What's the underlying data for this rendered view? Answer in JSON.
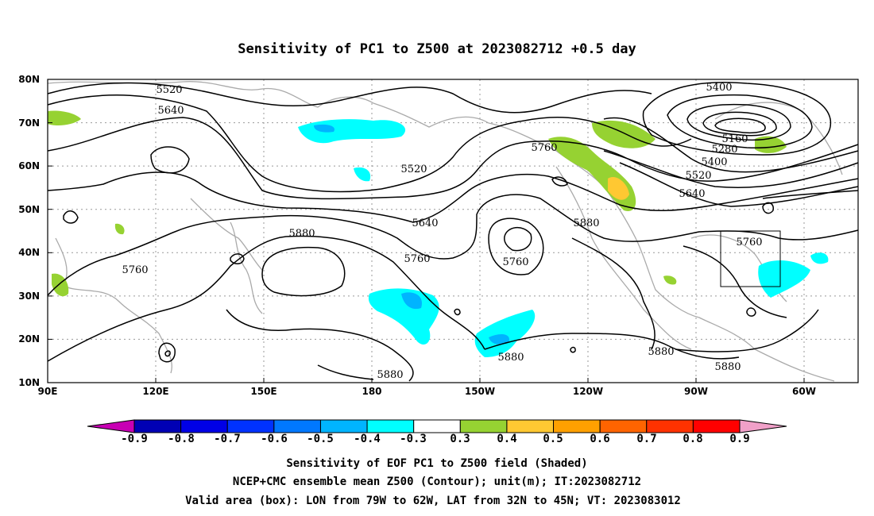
{
  "title": "Sensitivity of PC1 to Z500 at 2023082712 +0.5 day",
  "lat_labels": [
    "80N",
    "70N",
    "60N",
    "50N",
    "40N",
    "30N",
    "20N",
    "10N"
  ],
  "lon_labels": [
    "90E",
    "120E",
    "150E",
    "180",
    "150W",
    "120W",
    "90W",
    "60W"
  ],
  "contour_labels": [
    {
      "v": "5520"
    },
    {
      "v": "5640"
    },
    {
      "v": "5520"
    },
    {
      "v": "5760"
    },
    {
      "v": "5640"
    },
    {
      "v": "5760"
    },
    {
      "v": "5880"
    },
    {
      "v": "5760"
    },
    {
      "v": "5880"
    },
    {
      "v": "5880"
    },
    {
      "v": "5880"
    },
    {
      "v": "5760"
    },
    {
      "v": "5400"
    },
    {
      "v": "5160"
    },
    {
      "v": "5280"
    },
    {
      "v": "5400"
    },
    {
      "v": "5520"
    },
    {
      "v": "5640"
    },
    {
      "v": "5760"
    },
    {
      "v": "5880"
    },
    {
      "v": "5880"
    }
  ],
  "colorbar": {
    "labels": [
      "-0.9",
      "-0.8",
      "-0.7",
      "-0.6",
      "-0.5",
      "-0.4",
      "-0.3",
      "0.3",
      "0.4",
      "0.5",
      "0.6",
      "0.7",
      "0.8",
      "0.9"
    ],
    "left_arrow": "#c800b4",
    "right_arrow": "#f0a0c8",
    "colors": [
      "#0000b4",
      "#0000e6",
      "#0032ff",
      "#0078ff",
      "#00b4ff",
      "#00ffff",
      "#ffffff",
      "#96d232",
      "#ffc832",
      "#ffa000",
      "#ff6400",
      "#ff3200",
      "#ff0000"
    ]
  },
  "footer": {
    "line1": "Sensitivity of EOF PC1 to Z500 field (Shaded)",
    "line2": "NCEP+CMC ensemble mean Z500 (Contour); unit(m); IT:2023082712",
    "line3": "Valid area (box): LON from 79W to 62W, LAT from 32N to 45N; VT: 2023083012"
  }
}
